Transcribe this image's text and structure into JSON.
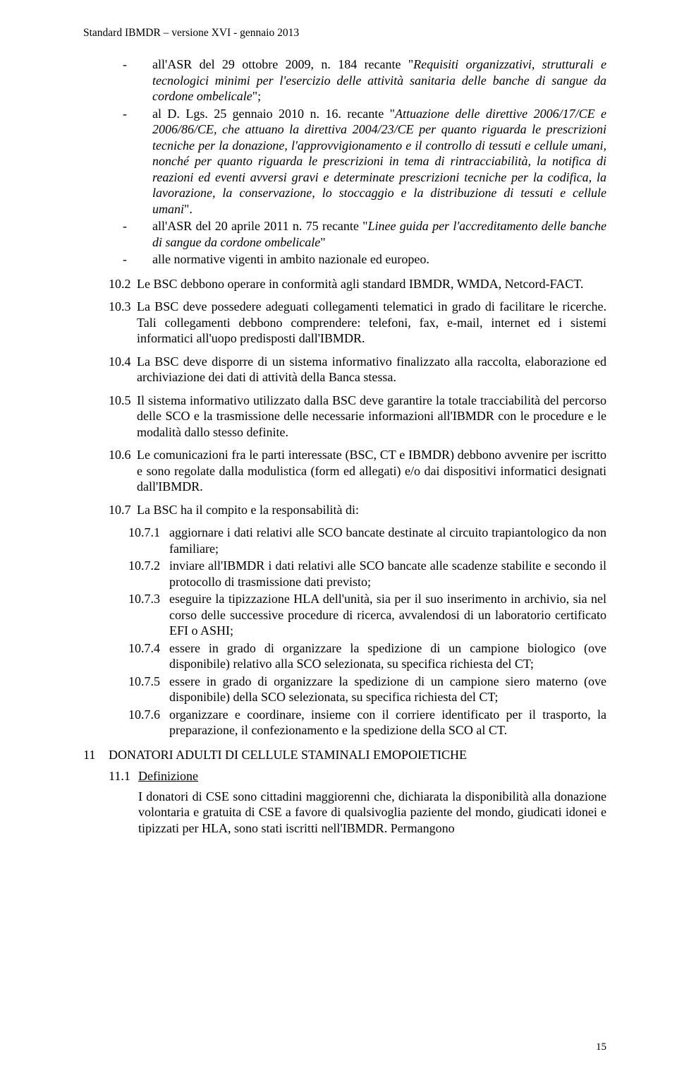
{
  "header": "Standard IBMDR – versione XVI -  gennaio 2013",
  "bullets": [
    {
      "runs": [
        {
          "t": "all'ASR del 29 ottobre 2009, n. 184 recante \""
        },
        {
          "t": "Requisiti organizzativi, strutturali e tecnologici minimi per l'esercizio delle attività sanitaria delle banche di sangue da cordone ombelicale",
          "i": true
        },
        {
          "t": "\";"
        }
      ]
    },
    {
      "runs": [
        {
          "t": "al D. Lgs. 25 gennaio 2010 n. 16. recante \""
        },
        {
          "t": "Attuazione delle direttive 2006/17/CE e 2006/86/CE, che attuano la direttiva 2004/23/CE per quanto riguarda le prescrizioni tecniche per la donazione, l'approvvigionamento e il controllo di tessuti e cellule umani, nonché per quanto riguarda le prescrizioni in tema di rintracciabilità, la notifica di reazioni ed eventi avversi gravi e determinate prescrizioni tecniche per la codifica, la lavorazione, la conservazione, lo stoccaggio e la distribuzione di tessuti e cellule umani",
          "i": true
        },
        {
          "t": "\"."
        }
      ]
    },
    {
      "runs": [
        {
          "t": "all'ASR del 20 aprile 2011 n. 75 recante \""
        },
        {
          "t": "Linee guida per l'accreditamento delle banche di sangue da cordone ombelicale",
          "i": true
        },
        {
          "t": "\""
        }
      ]
    },
    {
      "runs": [
        {
          "t": "alle normative vigenti in ambito nazionale ed europeo."
        }
      ]
    }
  ],
  "items": [
    {
      "num": "10.2",
      "text": "Le BSC debbono operare in conformità agli standard IBMDR, WMDA, Netcord-FACT."
    },
    {
      "num": "10.3",
      "text": "La BSC deve possedere adeguati collegamenti telematici in grado di facilitare le ricerche. Tali collegamenti debbono comprendere: telefoni, fax, e-mail, internet ed i sistemi informatici all'uopo predisposti dall'IBMDR."
    },
    {
      "num": "10.4",
      "text": "La BSC deve disporre di un sistema informativo finalizzato alla raccolta, elaborazione ed archiviazione dei dati di attività della Banca stessa."
    },
    {
      "num": "10.5",
      "text": "Il sistema informativo utilizzato dalla BSC deve garantire la totale tracciabilità del percorso delle SCO e la trasmissione delle necessarie informazioni all'IBMDR con le procedure e le modalità dallo stesso definite."
    },
    {
      "num": "10.6",
      "text": "Le comunicazioni fra le parti interessate (BSC, CT e IBMDR) debbono avvenire per iscritto e sono regolate dalla modulistica (form ed allegati) e/o dai dispositivi informatici designati dall'IBMDR."
    },
    {
      "num": "10.7",
      "text": "La BSC ha il compito e la responsabilità di:"
    }
  ],
  "subitems": [
    {
      "num": "10.7.1",
      "text": "aggiornare i dati relativi alle SCO bancate destinate al circuito trapiantologico da non familiare;"
    },
    {
      "num": "10.7.2",
      "text": " inviare all'IBMDR i dati relativi alle SCO bancate alle scadenze stabilite e secondo il protocollo di trasmissione dati previsto;"
    },
    {
      "num": "10.7.3",
      "text": "eseguire la tipizzazione HLA dell'unità, sia per il suo inserimento in archivio, sia nel corso delle successive procedure di ricerca, avvalendosi di un laboratorio certificato EFI o ASHI;"
    },
    {
      "num": "10.7.4",
      "text": "essere in grado di organizzare la spedizione di un campione biologico (ove disponibile) relativo alla SCO selezionata, su specifica richiesta del CT;"
    },
    {
      "num": "10.7.5",
      "text": "essere in grado di organizzare la spedizione di un campione siero materno (ove disponibile) della SCO selezionata, su specifica richiesta del CT;"
    },
    {
      "num": "10.7.6",
      "text": "organizzare e coordinare, insieme con il corriere identificato per il trasporto, la preparazione, il confezionamento e la spedizione della SCO al CT."
    }
  ],
  "section": {
    "num": "11",
    "title": "DONATORI ADULTI DI CELLULE STAMINALI EMOPOIETICHE"
  },
  "subsection": {
    "num": "11.1",
    "title": "Definizione"
  },
  "definition_body": "I donatori di CSE sono cittadini maggiorenni che, dichiarata la disponibilità alla donazione volontaria e gratuita di CSE a favore di qualsivoglia paziente del mondo, giudicati idonei e tipizzati per HLA, sono stati iscritti nell'IBMDR. Permangono",
  "page_number": "15"
}
